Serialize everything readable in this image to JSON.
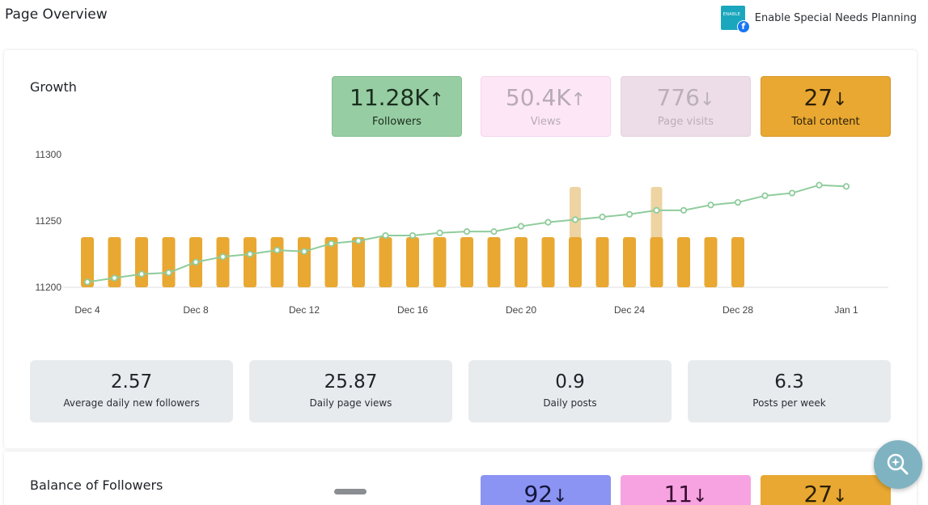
{
  "header": {
    "title": "Page Overview",
    "account_name": "Enable Special Needs Planning",
    "avatar_text": "ENABLE"
  },
  "growth": {
    "title": "Growth",
    "kpis": [
      {
        "value": "11.28K",
        "arrow": "↑",
        "label": "Followers",
        "color": "#97cda2"
      },
      {
        "value": "50.4K",
        "arrow": "↑",
        "label": "Views",
        "color": "#fde7f7"
      },
      {
        "value": "776",
        "arrow": "↓",
        "label": "Page visits",
        "color": "#eddde8"
      },
      {
        "value": "27",
        "arrow": "↓",
        "label": "Total content",
        "color": "#e8a832"
      }
    ],
    "stats": [
      {
        "value": "2.57",
        "label": "Average daily new followers"
      },
      {
        "value": "25.87",
        "label": "Daily page views"
      },
      {
        "value": "0.9",
        "label": "Daily posts"
      },
      {
        "value": "6.3",
        "label": "Posts per week"
      }
    ]
  },
  "balance": {
    "title": "Balance of Followers",
    "kpis": [
      {
        "value": "92",
        "arrow": "↓",
        "color": "#8b93f3"
      },
      {
        "value": "11",
        "arrow": "↓",
        "color": "#f7a3e2"
      },
      {
        "value": "27",
        "arrow": "↓",
        "color": "#e8a832"
      }
    ]
  },
  "chart_data": {
    "type": "bar",
    "x_tick_labels": [
      "Dec 4",
      "Dec 8",
      "Dec 12",
      "Dec 16",
      "Dec 20",
      "Dec 24",
      "Dec 28",
      "Jan 1"
    ],
    "y_ticks": [
      11200,
      11250,
      11300
    ],
    "ylim": [
      11200,
      11300
    ],
    "categories": [
      "Dec 4",
      "Dec 5",
      "Dec 6",
      "Dec 7",
      "Dec 8",
      "Dec 9",
      "Dec 10",
      "Dec 11",
      "Dec 12",
      "Dec 13",
      "Dec 14",
      "Dec 15",
      "Dec 16",
      "Dec 17",
      "Dec 18",
      "Dec 19",
      "Dec 20",
      "Dec 21",
      "Dec 22",
      "Dec 23",
      "Dec 24",
      "Dec 25",
      "Dec 26",
      "Dec 27",
      "Dec 28",
      "Dec 29",
      "Dec 30",
      "Dec 31",
      "Jan 1"
    ],
    "bar_values": [
      1,
      1,
      1,
      1,
      1,
      1,
      1,
      1,
      1,
      1,
      1,
      1,
      1,
      1,
      1,
      1,
      1,
      1,
      1,
      1,
      1,
      1,
      1,
      1,
      1,
      0,
      0,
      0,
      0
    ],
    "highlight_values": [
      0,
      0,
      0,
      0,
      0,
      0,
      0,
      0,
      0,
      0,
      0,
      0,
      0,
      0,
      0,
      0,
      0,
      0,
      1,
      0,
      0,
      1,
      0,
      0,
      0,
      0,
      0,
      0,
      0
    ],
    "bar_color": "#e8a832",
    "highlight_color": "#edd4a2",
    "line_values": [
      11204,
      11207,
      11210,
      11211,
      11219,
      11223,
      11225,
      11228,
      11227,
      11233,
      11235,
      11239,
      11239,
      11241,
      11242,
      11242,
      11246,
      11249,
      11251,
      11253,
      11255,
      11258,
      11258,
      11262,
      11264,
      11269,
      11271,
      11277,
      11276
    ],
    "line_color": "#8fcc9c",
    "grid": false
  }
}
